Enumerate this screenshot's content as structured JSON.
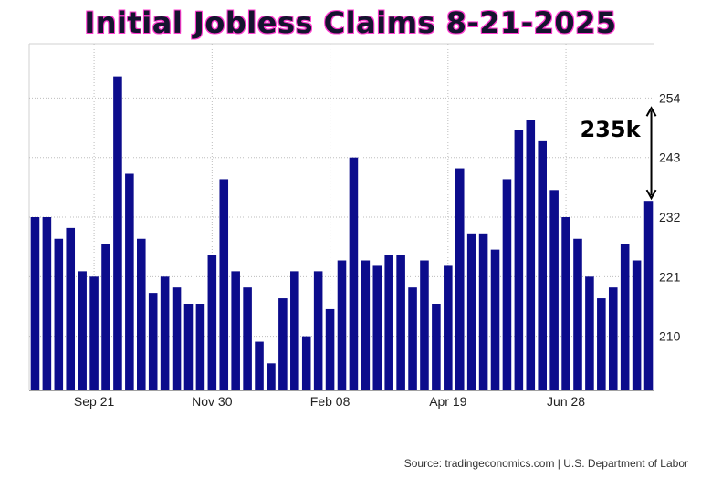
{
  "chart_data": {
    "type": "bar",
    "title": "Initial Jobless Claims 8-21-2025",
    "source": "Source: tradingeconomics.com | U.S. Department of Labor",
    "annotation": "235k",
    "x_ticks": [
      "Sep 21",
      "Nov 30",
      "Feb 08",
      "Apr 19",
      "Jun 28"
    ],
    "y_ticks": [
      210,
      221,
      232,
      243,
      254
    ],
    "ylim": [
      200,
      264
    ],
    "grid": true,
    "bar_color": "#0c0c8c",
    "values": [
      232,
      232,
      228,
      230,
      222,
      221,
      227,
      258,
      240,
      228,
      218,
      221,
      219,
      216,
      216,
      225,
      239,
      222,
      219,
      209,
      205,
      217,
      222,
      210,
      222,
      215,
      224,
      243,
      224,
      223,
      225,
      225,
      219,
      224,
      216,
      223,
      241,
      229,
      229,
      226,
      239,
      248,
      250,
      246,
      237,
      232,
      228,
      221,
      217,
      219,
      227,
      224,
      235
    ]
  }
}
